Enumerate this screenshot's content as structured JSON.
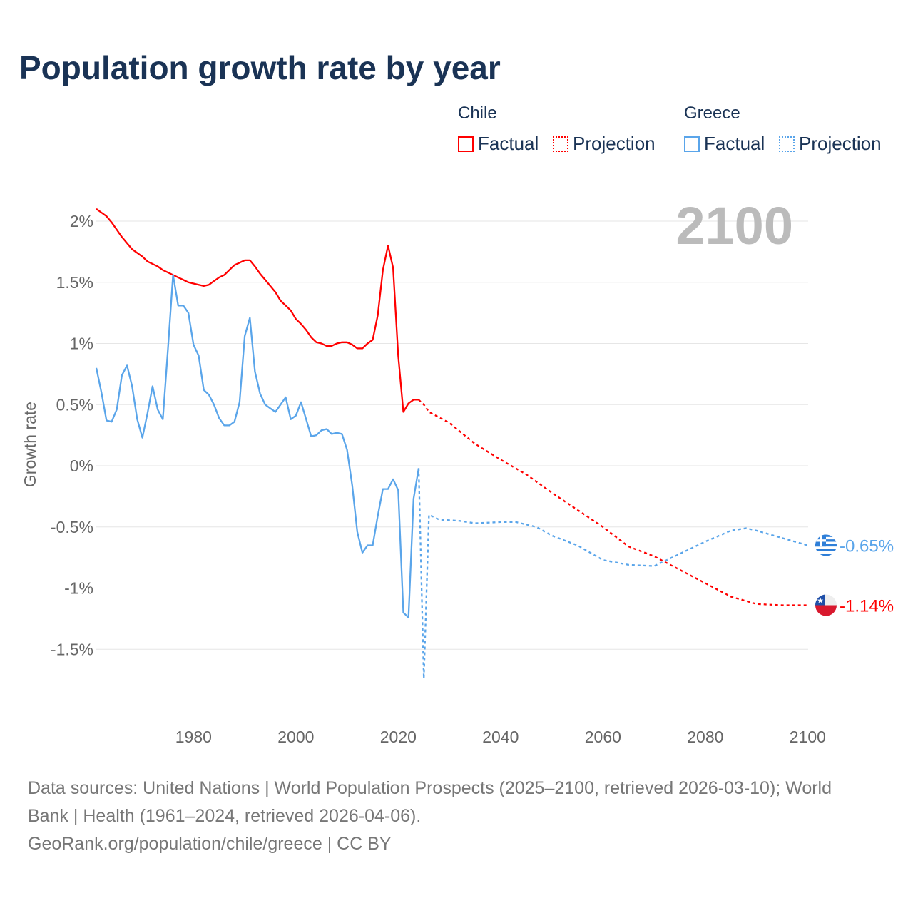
{
  "title": "Population growth rate by year",
  "legend": {
    "groups": [
      {
        "name": "Chile",
        "factual": "Factual",
        "projection": "Projection",
        "color": "#ff0000"
      },
      {
        "name": "Greece",
        "factual": "Factual",
        "projection": "Projection",
        "color": "#5aa5ea"
      }
    ]
  },
  "year_label": "2100",
  "footer": {
    "sources": "Data sources: United Nations | World Population Prospects (2025–2100, retrieved 2026-03-10); World Bank | Health (1961–2024, retrieved 2026-04-06).",
    "line1": "Data sources: United Nations | World Population Prospects (2025–2100, retrieved 2026-03-10); World",
    "line2": "Bank | Health (1961–2024, retrieved 2026-04-06).",
    "credit": "GeoRank.org/population/chile/greece | CC BY"
  },
  "chart_data": {
    "type": "line",
    "title": "Population growth rate by year",
    "ylabel": "Growth rate",
    "xlabel": "",
    "xlim": [
      1961,
      2100
    ],
    "ylim": [
      -2.0,
      2.2
    ],
    "xticks": [
      1980,
      2000,
      2020,
      2040,
      2060,
      2080,
      2100
    ],
    "yticks": [
      {
        "v": 2,
        "label": "2%"
      },
      {
        "v": 1.5,
        "label": "1.5%"
      },
      {
        "v": 1,
        "label": "1%"
      },
      {
        "v": 0.5,
        "label": "0.5%"
      },
      {
        "v": 0,
        "label": "0%"
      },
      {
        "v": -0.5,
        "label": "-0.5%"
      },
      {
        "v": -1,
        "label": "-1%"
      },
      {
        "v": -1.5,
        "label": "-1.5%"
      }
    ],
    "grid": true,
    "legend": "top-right",
    "series": [
      {
        "name": "Chile Factual",
        "country": "Chile",
        "kind": "factual",
        "color": "#ff0000",
        "x": [
          1961,
          1962,
          1963,
          1964,
          1965,
          1966,
          1967,
          1968,
          1969,
          1970,
          1971,
          1972,
          1973,
          1974,
          1975,
          1976,
          1977,
          1978,
          1979,
          1980,
          1981,
          1982,
          1983,
          1984,
          1985,
          1986,
          1987,
          1988,
          1989,
          1990,
          1991,
          1992,
          1993,
          1994,
          1995,
          1996,
          1997,
          1998,
          1999,
          2000,
          2001,
          2002,
          2003,
          2004,
          2005,
          2006,
          2007,
          2008,
          2009,
          2010,
          2011,
          2012,
          2013,
          2014,
          2015,
          2016,
          2017,
          2018,
          2019,
          2020,
          2021,
          2022,
          2023,
          2024
        ],
        "y": [
          2.1,
          2.07,
          2.04,
          1.99,
          1.93,
          1.87,
          1.82,
          1.77,
          1.74,
          1.71,
          1.67,
          1.65,
          1.63,
          1.6,
          1.58,
          1.56,
          1.54,
          1.52,
          1.5,
          1.49,
          1.48,
          1.47,
          1.48,
          1.51,
          1.54,
          1.56,
          1.6,
          1.64,
          1.66,
          1.68,
          1.68,
          1.63,
          1.57,
          1.52,
          1.47,
          1.42,
          1.35,
          1.31,
          1.27,
          1.2,
          1.16,
          1.11,
          1.05,
          1.01,
          1.0,
          0.98,
          0.98,
          1.0,
          1.01,
          1.01,
          0.99,
          0.96,
          0.96,
          1.0,
          1.03,
          1.23,
          1.6,
          1.8,
          1.62,
          0.9,
          0.44,
          0.51,
          0.54,
          0.54
        ]
      },
      {
        "name": "Chile Projection",
        "country": "Chile",
        "kind": "projection",
        "color": "#ff0000",
        "x": [
          2024,
          2025,
          2026,
          2030,
          2035,
          2040,
          2045,
          2050,
          2055,
          2060,
          2065,
          2070,
          2075,
          2080,
          2085,
          2090,
          2095,
          2100
        ],
        "y": [
          0.54,
          0.5,
          0.44,
          0.35,
          0.18,
          0.05,
          -0.07,
          -0.22,
          -0.36,
          -0.5,
          -0.66,
          -0.74,
          -0.85,
          -0.96,
          -1.07,
          -1.13,
          -1.14,
          -1.14
        ]
      },
      {
        "name": "Greece Factual",
        "country": "Greece",
        "kind": "factual",
        "color": "#5aa5ea",
        "x": [
          1961,
          1962,
          1963,
          1964,
          1965,
          1966,
          1967,
          1968,
          1969,
          1970,
          1971,
          1972,
          1973,
          1974,
          1975,
          1976,
          1977,
          1978,
          1979,
          1980,
          1981,
          1982,
          1983,
          1984,
          1985,
          1986,
          1987,
          1988,
          1989,
          1990,
          1991,
          1992,
          1993,
          1994,
          1995,
          1996,
          1997,
          1998,
          1999,
          2000,
          2001,
          2002,
          2003,
          2004,
          2005,
          2006,
          2007,
          2008,
          2009,
          2010,
          2011,
          2012,
          2013,
          2014,
          2015,
          2016,
          2017,
          2018,
          2019,
          2020,
          2021,
          2022,
          2023,
          2024
        ],
        "y": [
          0.8,
          0.6,
          0.37,
          0.36,
          0.46,
          0.74,
          0.82,
          0.65,
          0.38,
          0.23,
          0.43,
          0.65,
          0.46,
          0.38,
          0.95,
          1.56,
          1.31,
          1.31,
          1.25,
          0.99,
          0.9,
          0.62,
          0.58,
          0.5,
          0.39,
          0.33,
          0.33,
          0.36,
          0.52,
          1.06,
          1.21,
          0.77,
          0.59,
          0.5,
          0.47,
          0.44,
          0.5,
          0.56,
          0.38,
          0.41,
          0.52,
          0.38,
          0.24,
          0.25,
          0.29,
          0.3,
          0.26,
          0.27,
          0.26,
          0.13,
          -0.16,
          -0.54,
          -0.71,
          -0.65,
          -0.65,
          -0.41,
          -0.19,
          -0.19,
          -0.11,
          -0.2,
          -1.2,
          -1.24,
          -0.27,
          -0.02
        ]
      },
      {
        "name": "Greece Projection",
        "country": "Greece",
        "kind": "projection",
        "color": "#5aa5ea",
        "x": [
          2024,
          2025,
          2026,
          2028,
          2032,
          2035,
          2040,
          2043,
          2047,
          2050,
          2055,
          2060,
          2065,
          2070,
          2075,
          2080,
          2085,
          2088,
          2090,
          2095,
          2100
        ],
        "y": [
          -0.02,
          -1.74,
          -0.4,
          -0.44,
          -0.45,
          -0.47,
          -0.46,
          -0.46,
          -0.5,
          -0.57,
          -0.65,
          -0.77,
          -0.81,
          -0.82,
          -0.72,
          -0.62,
          -0.53,
          -0.51,
          -0.53,
          -0.59,
          -0.65
        ]
      }
    ],
    "end_labels": [
      {
        "country": "Greece",
        "label": "-0.65%",
        "value": -0.65,
        "color": "#5aa5ea"
      },
      {
        "country": "Chile",
        "label": "-1.14%",
        "value": -1.14,
        "color": "#ff0000"
      }
    ]
  }
}
